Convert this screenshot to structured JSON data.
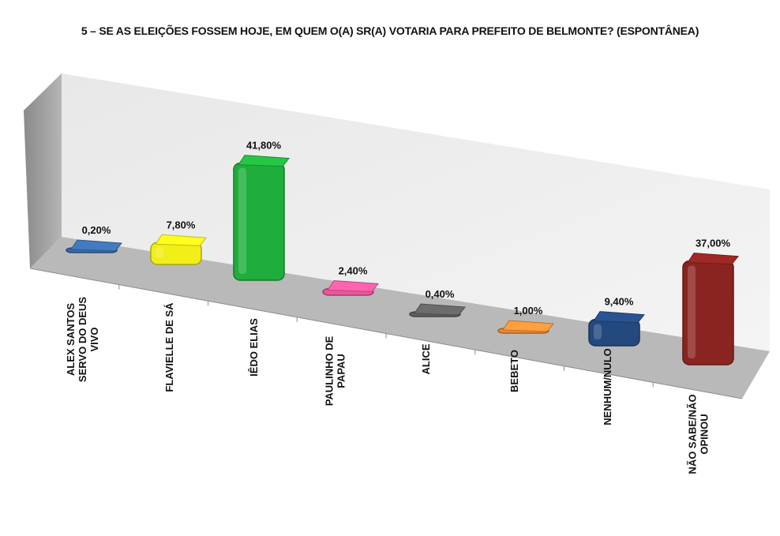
{
  "title": "5 – SE AS ELEIÇÕES FOSSEM HOJE, EM QUEM O(A) SR(A) VOTARIA PARA PREFEITO DE BELMONTE? (ESPONTÂNEA)",
  "chart_data": {
    "type": "bar",
    "title": "5 – SE AS ELEIÇÕES FOSSEM HOJE, EM QUEM O(A) SR(A) VOTARIA PARA PREFEITO DE BELMONTE? (ESPONTÂNEA)",
    "xlabel": "",
    "ylabel": "",
    "categories": [
      "ALEX SANTOS SERVO DO DEUS VIVO",
      "FLAVIELLE DE SÁ",
      "IÊDO ELIAS",
      "PAULINHO DE PAPAU",
      "ALICE",
      "BEBETO",
      "NENHUM/NULO",
      "NÃO SABE/NÃO OPINOU"
    ],
    "values": [
      0.2,
      7.8,
      41.8,
      2.4,
      0.4,
      1.0,
      9.4,
      37.0
    ],
    "value_labels": [
      "0,20%",
      "7,80%",
      "41,80%",
      "2,40%",
      "0,40%",
      "1,00%",
      "9,40%",
      "37,00%"
    ],
    "colors": [
      "#3a6aa8",
      "#f2ee1a",
      "#1fae3b",
      "#e8579a",
      "#5f5f5f",
      "#ee8a35",
      "#24497f",
      "#8a2421"
    ],
    "unit": "%",
    "style": "3d-perspective-column",
    "grid": false,
    "legend": "none",
    "ylim": [
      0,
      45
    ]
  },
  "bars": [
    {
      "label_lines": [
        "ALEX SANTOS",
        "SERVO DO DEUS",
        "VIVO"
      ],
      "value_text": "0,20%"
    },
    {
      "label_lines": [
        "FLAVIELLE DE SÁ"
      ],
      "value_text": "7,80%"
    },
    {
      "label_lines": [
        "IÊDO ELIAS"
      ],
      "value_text": "41,80%"
    },
    {
      "label_lines": [
        "PAULINHO DE",
        "PAPAU"
      ],
      "value_text": "2,40%"
    },
    {
      "label_lines": [
        "ALICE"
      ],
      "value_text": "0,40%"
    },
    {
      "label_lines": [
        "BEBETO"
      ],
      "value_text": "1,00%"
    },
    {
      "label_lines": [
        "NENHUM/NULO"
      ],
      "value_text": "9,40%"
    },
    {
      "label_lines": [
        "NÃO SABE/NÃO",
        "OPINOU"
      ],
      "value_text": "37,00%"
    }
  ]
}
